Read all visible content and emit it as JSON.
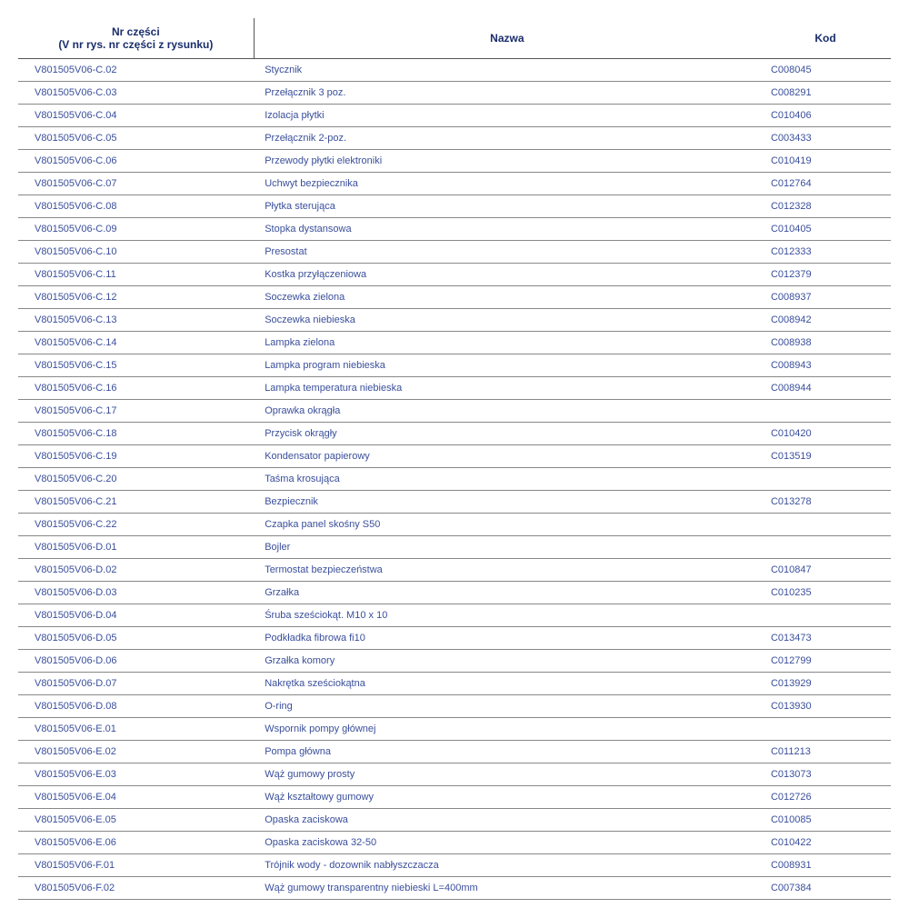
{
  "table": {
    "columns": [
      "Nr części\n(V nr rys. nr części z rysunku)",
      "Nazwa",
      "Kod"
    ],
    "rows": [
      [
        "V801505V06-C.02",
        "Stycznik",
        "C008045"
      ],
      [
        "V801505V06-C.03",
        "Przełącznik 3 poz.",
        "C008291"
      ],
      [
        "V801505V06-C.04",
        "Izolacja płytki",
        "C010406"
      ],
      [
        "V801505V06-C.05",
        "Przełącznik 2-poz.",
        "C003433"
      ],
      [
        "V801505V06-C.06",
        "Przewody płytki elektroniki",
        "C010419"
      ],
      [
        "V801505V06-C.07",
        "Uchwyt bezpiecznika",
        "C012764"
      ],
      [
        "V801505V06-C.08",
        "Płytka sterująca",
        "C012328"
      ],
      [
        "V801505V06-C.09",
        "Stopka dystansowa",
        "C010405"
      ],
      [
        "V801505V06-C.10",
        "Presostat",
        "C012333"
      ],
      [
        "V801505V06-C.11",
        "Kostka przyłączeniowa",
        "C012379"
      ],
      [
        "V801505V06-C.12",
        "Soczewka zielona",
        "C008937"
      ],
      [
        "V801505V06-C.13",
        "Soczewka niebieska",
        "C008942"
      ],
      [
        "V801505V06-C.14",
        "Lampka zielona",
        "C008938"
      ],
      [
        "V801505V06-C.15",
        "Lampka program niebieska",
        "C008943"
      ],
      [
        "V801505V06-C.16",
        "Lampka temperatura niebieska",
        "C008944"
      ],
      [
        "V801505V06-C.17",
        "Oprawka okrągła",
        ""
      ],
      [
        "V801505V06-C.18",
        "Przycisk okrągły",
        "C010420"
      ],
      [
        "V801505V06-C.19",
        "Kondensator papierowy",
        "C013519"
      ],
      [
        "V801505V06-C.20",
        "Taśma krosująca",
        ""
      ],
      [
        "V801505V06-C.21",
        "Bezpiecznik",
        "C013278"
      ],
      [
        "V801505V06-C.22",
        "Czapka panel skośny S50",
        ""
      ],
      [
        "V801505V06-D.01",
        "Bojler",
        ""
      ],
      [
        "V801505V06-D.02",
        "Termostat bezpieczeństwa",
        "C010847"
      ],
      [
        "V801505V06-D.03",
        "Grzałka",
        "C010235"
      ],
      [
        "V801505V06-D.04",
        "Śruba sześciokąt. M10 x 10",
        ""
      ],
      [
        "V801505V06-D.05",
        "Podkładka fibrowa fi10",
        "C013473"
      ],
      [
        "V801505V06-D.06",
        "Grzałka komory",
        "C012799"
      ],
      [
        "V801505V06-D.07",
        "Nakrętka sześciokątna",
        "C013929"
      ],
      [
        "V801505V06-D.08",
        "O-ring",
        "C013930"
      ],
      [
        "V801505V06-E.01",
        "Wspornik pompy głównej",
        ""
      ],
      [
        "V801505V06-E.02",
        "Pompa główna",
        "C011213"
      ],
      [
        "V801505V06-E.03",
        "Wąż gumowy prosty",
        "C013073"
      ],
      [
        "V801505V06-E.04",
        "Wąż kształtowy gumowy",
        "C012726"
      ],
      [
        "V801505V06-E.05",
        "Opaska zaciskowa",
        "C010085"
      ],
      [
        "V801505V06-E.06",
        "Opaska zaciskowa 32-50",
        "C010422"
      ],
      [
        "V801505V06-F.01",
        "Trójnik wody - dozownik nabłyszczacza",
        "C008931"
      ],
      [
        "V801505V06-F.02",
        "Wąż gumowy transparentny niebieski L=400mm",
        "C007384"
      ]
    ],
    "header_color": "#1a2d6b",
    "cell_color": "#3a4f9b",
    "border_color": "#888888",
    "background_color": "#ffffff",
    "header_fontsize": 12,
    "cell_fontsize": 11,
    "column_widths": [
      "27%",
      "58%",
      "15%"
    ]
  }
}
